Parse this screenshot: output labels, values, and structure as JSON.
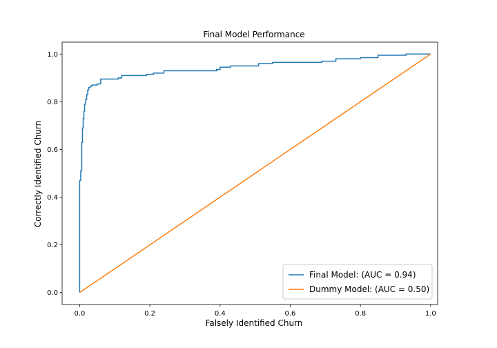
{
  "chart_data": {
    "type": "line",
    "title": "Final Model Performance",
    "xlabel": "Falsely Identified Churn",
    "ylabel": "Correctly Identified Churn",
    "xlim": [
      -0.05,
      1.02
    ],
    "ylim": [
      -0.05,
      1.05
    ],
    "x_ticks": [
      0.0,
      0.2,
      0.4,
      0.6,
      0.8,
      1.0
    ],
    "y_ticks": [
      0.0,
      0.2,
      0.4,
      0.6,
      0.8,
      1.0
    ],
    "x_tick_labels": [
      "0.0",
      "0.2",
      "0.4",
      "0.6",
      "0.8",
      "1.0"
    ],
    "y_tick_labels": [
      "0.0",
      "0.2",
      "0.4",
      "0.6",
      "0.8",
      "1.0"
    ],
    "grid": false,
    "legend_position": "bottom-right",
    "series": [
      {
        "name": "Final Model: (AUC = 0.94)",
        "color": "#1f77b4",
        "step": true,
        "x": [
          0.0,
          0.0,
          0.003,
          0.003,
          0.006,
          0.006,
          0.008,
          0.008,
          0.01,
          0.01,
          0.012,
          0.012,
          0.014,
          0.014,
          0.017,
          0.017,
          0.02,
          0.02,
          0.023,
          0.023,
          0.026,
          0.026,
          0.03,
          0.03,
          0.035,
          0.035,
          0.05,
          0.05,
          0.06,
          0.06,
          0.11,
          0.11,
          0.12,
          0.12,
          0.19,
          0.19,
          0.21,
          0.21,
          0.24,
          0.24,
          0.39,
          0.39,
          0.4,
          0.4,
          0.43,
          0.43,
          0.51,
          0.51,
          0.55,
          0.55,
          0.69,
          0.69,
          0.73,
          0.73,
          0.8,
          0.8,
          0.85,
          0.85,
          0.93,
          0.93,
          1.0
        ],
        "y": [
          0.0,
          0.47,
          0.47,
          0.51,
          0.51,
          0.63,
          0.63,
          0.69,
          0.69,
          0.73,
          0.73,
          0.76,
          0.76,
          0.79,
          0.79,
          0.81,
          0.81,
          0.83,
          0.83,
          0.85,
          0.85,
          0.86,
          0.86,
          0.865,
          0.865,
          0.87,
          0.87,
          0.875,
          0.875,
          0.895,
          0.895,
          0.9,
          0.9,
          0.91,
          0.91,
          0.915,
          0.915,
          0.92,
          0.92,
          0.93,
          0.93,
          0.935,
          0.935,
          0.945,
          0.945,
          0.95,
          0.95,
          0.96,
          0.96,
          0.965,
          0.965,
          0.97,
          0.97,
          0.98,
          0.98,
          0.985,
          0.985,
          0.995,
          0.995,
          1.0,
          1.0
        ]
      },
      {
        "name": "Dummy Model: (AUC = 0.50)",
        "color": "#ff7f0e",
        "step": false,
        "x": [
          0.0,
          1.0
        ],
        "y": [
          0.0,
          1.0
        ]
      }
    ]
  }
}
